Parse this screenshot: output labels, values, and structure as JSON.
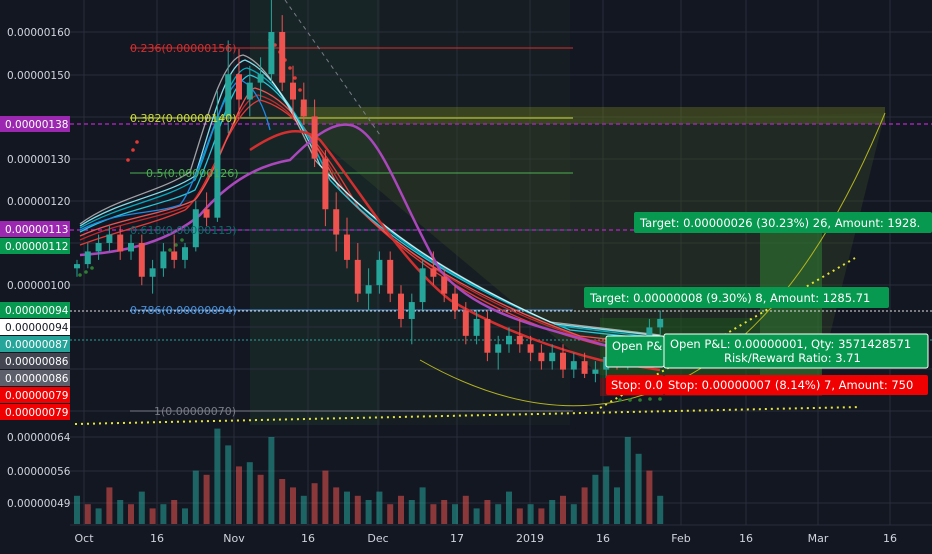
{
  "chart_data": {
    "type": "candlestick",
    "title": "",
    "price_axis": {
      "ticks": [
        "0.00000160",
        "0.00000150",
        "0.00000130",
        "0.00000120",
        "0.00000100",
        "0.00000064",
        "0.00000056",
        "0.00000049"
      ],
      "ylim": [
        4.5e-07,
        1.65e-06
      ]
    },
    "time_axis": {
      "labels": [
        "Oct",
        "16",
        "Nov",
        "16",
        "Dec",
        "17",
        "2019",
        "16",
        "Feb",
        "16",
        "Mar",
        "16"
      ]
    },
    "price_tags": [
      {
        "text": "0.00000138",
        "color": "#9c27b0"
      },
      {
        "text": "0.00000113",
        "color": "#9c27b0"
      },
      {
        "text": "0.00000112",
        "color": "#089950"
      },
      {
        "text": "0.00000094",
        "color": "#089950"
      },
      {
        "text": "0.00000094",
        "color": "#ffffff"
      },
      {
        "text": "0.00000087",
        "color": "#26a69a"
      },
      {
        "text": "0.00000086",
        "color": "#434651"
      },
      {
        "text": "0.00000086",
        "color": "#5d606b"
      },
      {
        "text": "0.00000079",
        "color": "#f00000"
      },
      {
        "text": "0.00000079",
        "color": "#f00000"
      }
    ],
    "fib_levels": [
      {
        "label": "0.236(0.00000156)",
        "color": "#d32f2f"
      },
      {
        "label": "0.382(0.00000140)",
        "color": "#cddc39"
      },
      {
        "label": "0.5(0.00000126)",
        "color": "#4caf50"
      },
      {
        "label": "0.618(0.00000113)",
        "color": "#0e6b6b"
      },
      {
        "label": "0.786(0.00000094)",
        "color": "#4a90d9"
      },
      {
        "label": "1(0.00000070)",
        "color": "#787b86"
      }
    ],
    "position_labels": {
      "target_1": "Target: 0.00000026 (30.23%) 26, Amount: 1928.",
      "target_2": "Target: 0.00000008 (9.30%) 8, Amount: 1285.71",
      "open_pl_short": "Open P&",
      "open_pl": "Open P&L: 0.00000001, Qty: 3571428571",
      "risk_reward": "Risk/Reward Ratio: 3.71",
      "stop_short": "Stop: 0.0",
      "stop": "Stop: 0.00000007 (8.14%) 7, Amount: 750"
    },
    "price_series": [
      [
        0,
        104,
        106,
        102,
        105
      ],
      [
        1,
        105,
        110,
        104,
        108
      ],
      [
        2,
        108,
        112,
        106,
        110
      ],
      [
        3,
        110,
        114,
        108,
        112
      ],
      [
        4,
        112,
        114,
        106,
        108
      ],
      [
        5,
        108,
        112,
        106,
        110
      ],
      [
        6,
        110,
        112,
        100,
        102
      ],
      [
        7,
        102,
        106,
        98,
        104
      ],
      [
        8,
        104,
        110,
        102,
        108
      ],
      [
        9,
        108,
        112,
        104,
        106
      ],
      [
        10,
        106,
        110,
        104,
        109
      ],
      [
        11,
        109,
        120,
        108,
        118
      ],
      [
        12,
        118,
        122,
        114,
        116
      ],
      [
        13,
        116,
        146,
        115,
        140
      ],
      [
        14,
        140,
        158,
        136,
        150
      ],
      [
        15,
        150,
        156,
        140,
        144
      ],
      [
        16,
        144,
        152,
        140,
        148
      ],
      [
        17,
        148,
        154,
        144,
        150
      ],
      [
        18,
        150,
        168,
        148,
        160
      ],
      [
        19,
        160,
        164,
        146,
        148
      ],
      [
        20,
        148,
        152,
        140,
        144
      ],
      [
        21,
        144,
        148,
        138,
        140
      ],
      [
        22,
        140,
        144,
        128,
        130
      ],
      [
        23,
        130,
        132,
        114,
        118
      ],
      [
        24,
        118,
        122,
        108,
        112
      ],
      [
        25,
        112,
        116,
        104,
        106
      ],
      [
        26,
        106,
        110,
        96,
        98
      ],
      [
        27,
        98,
        104,
        94,
        100
      ],
      [
        28,
        100,
        108,
        98,
        106
      ],
      [
        29,
        106,
        108,
        96,
        98
      ],
      [
        30,
        98,
        100,
        90,
        92
      ],
      [
        31,
        92,
        98,
        86,
        96
      ],
      [
        32,
        96,
        106,
        94,
        104
      ],
      [
        33,
        104,
        108,
        100,
        102
      ],
      [
        34,
        102,
        104,
        96,
        98
      ],
      [
        35,
        98,
        100,
        92,
        94
      ],
      [
        36,
        94,
        96,
        86,
        88
      ],
      [
        37,
        88,
        94,
        86,
        92
      ],
      [
        38,
        92,
        94,
        82,
        84
      ],
      [
        39,
        84,
        88,
        80,
        86
      ],
      [
        40,
        86,
        90,
        84,
        88
      ],
      [
        41,
        88,
        92,
        84,
        86
      ],
      [
        42,
        86,
        88,
        82,
        84
      ],
      [
        43,
        84,
        86,
        80,
        82
      ],
      [
        44,
        82,
        86,
        80,
        84
      ],
      [
        45,
        84,
        86,
        78,
        80
      ],
      [
        46,
        80,
        84,
        78,
        82
      ],
      [
        47,
        82,
        84,
        78,
        79
      ],
      [
        48,
        79,
        82,
        77,
        80
      ],
      [
        49,
        80,
        84,
        78,
        83
      ],
      [
        50,
        83,
        86,
        80,
        82
      ],
      [
        51,
        82,
        86,
        80,
        84
      ],
      [
        52,
        84,
        88,
        82,
        86
      ],
      [
        53,
        86,
        92,
        84,
        90
      ],
      [
        54,
        90,
        94,
        86,
        92
      ]
    ],
    "volume_series": [
      [
        0,
        50,
        1
      ],
      [
        1,
        48,
        0
      ],
      [
        2,
        47,
        1
      ],
      [
        3,
        52,
        0
      ],
      [
        4,
        49,
        1
      ],
      [
        5,
        48,
        0
      ],
      [
        6,
        51,
        1
      ],
      [
        7,
        47,
        0
      ],
      [
        8,
        48,
        1
      ],
      [
        9,
        49,
        0
      ],
      [
        10,
        47,
        1
      ],
      [
        11,
        56,
        1
      ],
      [
        12,
        55,
        0
      ],
      [
        13,
        66,
        1
      ],
      [
        14,
        62,
        1
      ],
      [
        15,
        57,
        0
      ],
      [
        16,
        58,
        1
      ],
      [
        17,
        55,
        0
      ],
      [
        18,
        64,
        1
      ],
      [
        19,
        54,
        0
      ],
      [
        20,
        52,
        0
      ],
      [
        21,
        50,
        1
      ],
      [
        22,
        53,
        0
      ],
      [
        23,
        56,
        0
      ],
      [
        24,
        52,
        0
      ],
      [
        25,
        51,
        1
      ],
      [
        26,
        50,
        0
      ],
      [
        27,
        49,
        1
      ],
      [
        28,
        51,
        1
      ],
      [
        29,
        48,
        0
      ],
      [
        30,
        50,
        0
      ],
      [
        31,
        49,
        1
      ],
      [
        32,
        52,
        1
      ],
      [
        33,
        48,
        0
      ],
      [
        34,
        49,
        0
      ],
      [
        35,
        48,
        1
      ],
      [
        36,
        50,
        0
      ],
      [
        37,
        47,
        1
      ],
      [
        38,
        49,
        0
      ],
      [
        39,
        48,
        1
      ],
      [
        40,
        51,
        1
      ],
      [
        41,
        47,
        0
      ],
      [
        42,
        48,
        1
      ],
      [
        43,
        47,
        0
      ],
      [
        44,
        49,
        1
      ],
      [
        45,
        50,
        0
      ],
      [
        46,
        48,
        1
      ],
      [
        47,
        52,
        0
      ],
      [
        48,
        55,
        1
      ],
      [
        49,
        57,
        1
      ],
      [
        50,
        52,
        1
      ],
      [
        51,
        64,
        1
      ],
      [
        52,
        60,
        1
      ],
      [
        53,
        56,
        0
      ],
      [
        54,
        50,
        1
      ]
    ]
  }
}
